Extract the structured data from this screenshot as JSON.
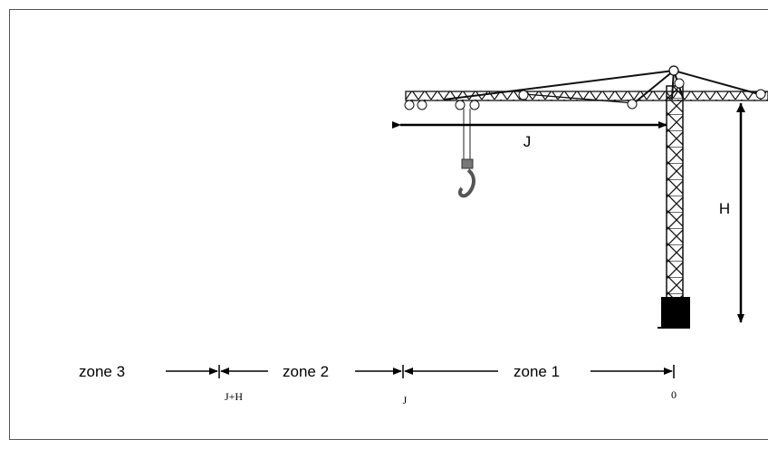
{
  "crane": {
    "jib_label": "J",
    "height_label": "H"
  },
  "zones": [
    {
      "label": "zone 3"
    },
    {
      "label": "zone 2"
    },
    {
      "label": "zone 1"
    }
  ],
  "markers": [
    {
      "label": "J+H"
    },
    {
      "label": "J"
    },
    {
      "label": "0"
    }
  ]
}
